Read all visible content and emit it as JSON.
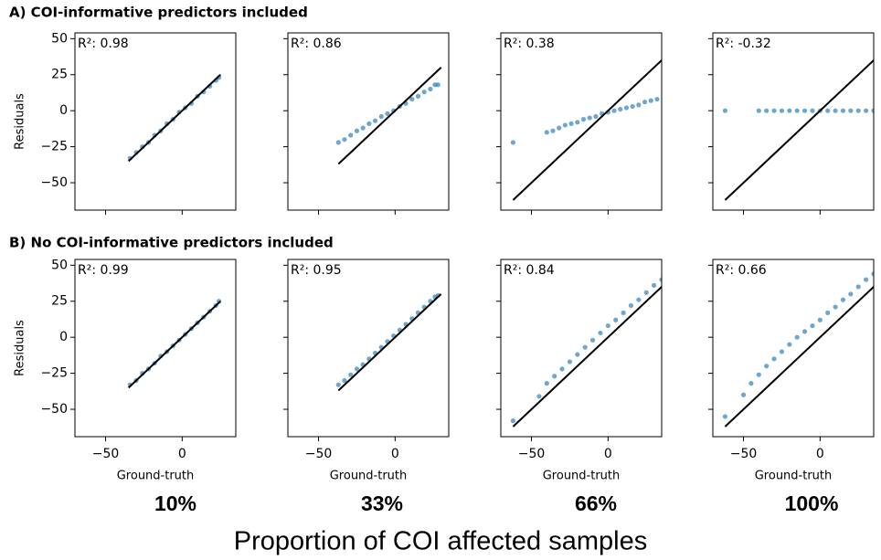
{
  "section_titles": [
    "A) COI-informative predictors included",
    "B) No COI-informative predictors included"
  ],
  "column_labels": [
    "10%",
    "33%",
    "66%",
    "100%"
  ],
  "footer": "Proportion of COI affected samples",
  "chart_data": [
    {
      "type": "scatter",
      "annotation": "R²: 0.98",
      "ylabel": "Residuals",
      "color": "#1f77b4",
      "x": [
        -34,
        -30,
        -26,
        -22,
        -18,
        -14,
        -10,
        -6,
        -2,
        2,
        6,
        10,
        14,
        18,
        22,
        24
      ],
      "y": [
        -33,
        -29,
        -25,
        -22,
        -17,
        -14,
        -9,
        -6,
        -1,
        2,
        5,
        10,
        13,
        17,
        21,
        23
      ],
      "line": {
        "x": [
          -35,
          25
        ],
        "y": [
          -35,
          25
        ]
      },
      "xlim": [
        -70,
        35
      ],
      "ylim": [
        -69,
        54
      ],
      "xticks": [
        -50,
        0
      ],
      "yticks": [
        {
          "value": -50,
          "label": "−50"
        },
        {
          "value": -25,
          "label": "−25"
        },
        0,
        25,
        50
      ],
      "show_xticklabels": false,
      "show_yticklabels": true
    },
    {
      "type": "scatter",
      "annotation": "R²: 0.86",
      "color": "#1f77b4",
      "x": [
        -37,
        -33,
        -29,
        -25,
        -21,
        -17,
        -13,
        -9,
        -5,
        -1,
        3,
        7,
        11,
        15,
        19,
        23,
        26,
        28
      ],
      "y": [
        -22,
        -20,
        -17,
        -14,
        -12,
        -9,
        -7,
        -4,
        -2,
        0,
        3,
        5,
        8,
        10,
        13,
        15,
        18,
        18
      ],
      "line": {
        "x": [
          -37,
          30
        ],
        "y": [
          -37,
          30
        ]
      },
      "xlim": [
        -70,
        35
      ],
      "ylim": [
        -69,
        54
      ],
      "xticks": [
        -50,
        0
      ],
      "yticks": [
        -50,
        -25,
        0,
        25,
        50
      ],
      "show_xticklabels": false,
      "show_yticklabels": false
    },
    {
      "type": "scatter",
      "annotation": "R²: 0.38",
      "color": "#1f77b4",
      "x": [
        -62,
        -40,
        -36,
        -32,
        -28,
        -24,
        -20,
        -16,
        -12,
        -8,
        -4,
        0,
        4,
        8,
        12,
        16,
        20,
        24,
        28,
        32,
        38
      ],
      "y": [
        -22,
        -15,
        -14,
        -12,
        -10,
        -9,
        -8,
        -6,
        -5,
        -4,
        -2,
        -1,
        0,
        1,
        2,
        3,
        4,
        6,
        7,
        8,
        15
      ],
      "line": {
        "x": [
          -62,
          38
        ],
        "y": [
          -62,
          38
        ]
      },
      "xlim": [
        -70,
        35
      ],
      "ylim": [
        -69,
        54
      ],
      "xticks": [
        -50,
        0
      ],
      "yticks": [
        -50,
        -25,
        0,
        25,
        50
      ],
      "show_xticklabels": false,
      "show_yticklabels": false
    },
    {
      "type": "scatter",
      "annotation": "R²: -0.32",
      "color": "#1f77b4",
      "x": [
        -62,
        -40,
        -35,
        -30,
        -25,
        -20,
        -15,
        -10,
        -5,
        0,
        5,
        10,
        15,
        20,
        25,
        30,
        35
      ],
      "y": [
        0,
        0,
        0,
        0,
        0,
        0,
        0,
        0,
        0,
        0,
        0,
        0,
        0,
        0,
        0,
        0,
        0
      ],
      "line": {
        "x": [
          -62,
          38
        ],
        "y": [
          -62,
          38
        ]
      },
      "xlim": [
        -70,
        35
      ],
      "ylim": [
        -69,
        54
      ],
      "xticks": [
        -50,
        0
      ],
      "yticks": [
        -50,
        -25,
        0,
        25,
        50
      ],
      "show_xticklabels": false,
      "show_yticklabels": false
    },
    {
      "type": "scatter",
      "annotation": "R²: 0.99",
      "ylabel": "Residuals",
      "xlabel": "Ground-truth",
      "color": "#1f77b4",
      "x": [
        -34,
        -30,
        -26,
        -22,
        -18,
        -14,
        -10,
        -6,
        -2,
        2,
        6,
        10,
        14,
        18,
        22,
        24
      ],
      "y": [
        -33,
        -30,
        -25,
        -22,
        -18,
        -13,
        -10,
        -6,
        -2,
        2,
        6,
        10,
        14,
        18,
        22,
        25
      ],
      "line": {
        "x": [
          -35,
          25
        ],
        "y": [
          -35,
          25
        ]
      },
      "xlim": [
        -70,
        35
      ],
      "ylim": [
        -69,
        54
      ],
      "xticks": [
        {
          "value": -50,
          "label": "−50"
        },
        0
      ],
      "yticks": [
        {
          "value": -50,
          "label": "−50"
        },
        {
          "value": -25,
          "label": "−25"
        },
        0,
        25,
        50
      ],
      "show_xticklabels": true,
      "show_yticklabels": true
    },
    {
      "type": "scatter",
      "annotation": "R²: 0.95",
      "xlabel": "Ground-truth",
      "color": "#1f77b4",
      "x": [
        -37,
        -33,
        -29,
        -25,
        -21,
        -17,
        -13,
        -9,
        -5,
        -1,
        3,
        7,
        11,
        15,
        19,
        23,
        26,
        28
      ],
      "y": [
        -33,
        -30,
        -26,
        -22,
        -19,
        -15,
        -11,
        -7,
        -3,
        1,
        5,
        9,
        13,
        17,
        21,
        25,
        28,
        29
      ],
      "line": {
        "x": [
          -37,
          30
        ],
        "y": [
          -37,
          30
        ]
      },
      "xlim": [
        -70,
        35
      ],
      "ylim": [
        -69,
        54
      ],
      "xticks": [
        {
          "value": -50,
          "label": "−50"
        },
        0
      ],
      "yticks": [
        -50,
        -25,
        0,
        25,
        50
      ],
      "show_xticklabels": true,
      "show_yticklabels": false
    },
    {
      "type": "scatter",
      "annotation": "R²: 0.84",
      "xlabel": "Ground-truth",
      "color": "#1f77b4",
      "x": [
        -62,
        -45,
        -40,
        -35,
        -30,
        -25,
        -20,
        -15,
        -10,
        -5,
        0,
        5,
        10,
        15,
        20,
        25,
        30,
        35,
        38
      ],
      "y": [
        -58,
        -41,
        -32,
        -27,
        -22,
        -17,
        -12,
        -7,
        -2,
        3,
        8,
        12,
        17,
        22,
        26,
        31,
        36,
        40,
        47
      ],
      "line": {
        "x": [
          -62,
          38
        ],
        "y": [
          -62,
          38
        ]
      },
      "xlim": [
        -70,
        35
      ],
      "ylim": [
        -69,
        54
      ],
      "xticks": [
        {
          "value": -50,
          "label": "−50"
        },
        0
      ],
      "yticks": [
        -50,
        -25,
        0,
        25,
        50
      ],
      "show_xticklabels": true,
      "show_yticklabels": false
    },
    {
      "type": "scatter",
      "annotation": "R²: 0.66",
      "xlabel": "Ground-truth",
      "color": "#1f77b4",
      "x": [
        -62,
        -50,
        -45,
        -40,
        -35,
        -30,
        -25,
        -20,
        -15,
        -10,
        -5,
        0,
        5,
        10,
        15,
        20,
        25,
        30,
        35,
        38
      ],
      "y": [
        -55,
        -40,
        -32,
        -26,
        -20,
        -15,
        -10,
        -5,
        0,
        4,
        8,
        12,
        17,
        21,
        26,
        30,
        35,
        40,
        44,
        46
      ],
      "line": {
        "x": [
          -62,
          38
        ],
        "y": [
          -62,
          38
        ]
      },
      "xlim": [
        -70,
        35
      ],
      "ylim": [
        -69,
        54
      ],
      "xticks": [
        {
          "value": -50,
          "label": "−50"
        },
        0
      ],
      "yticks": [
        -50,
        -25,
        0,
        25,
        50
      ],
      "show_xticklabels": true,
      "show_yticklabels": false
    }
  ]
}
